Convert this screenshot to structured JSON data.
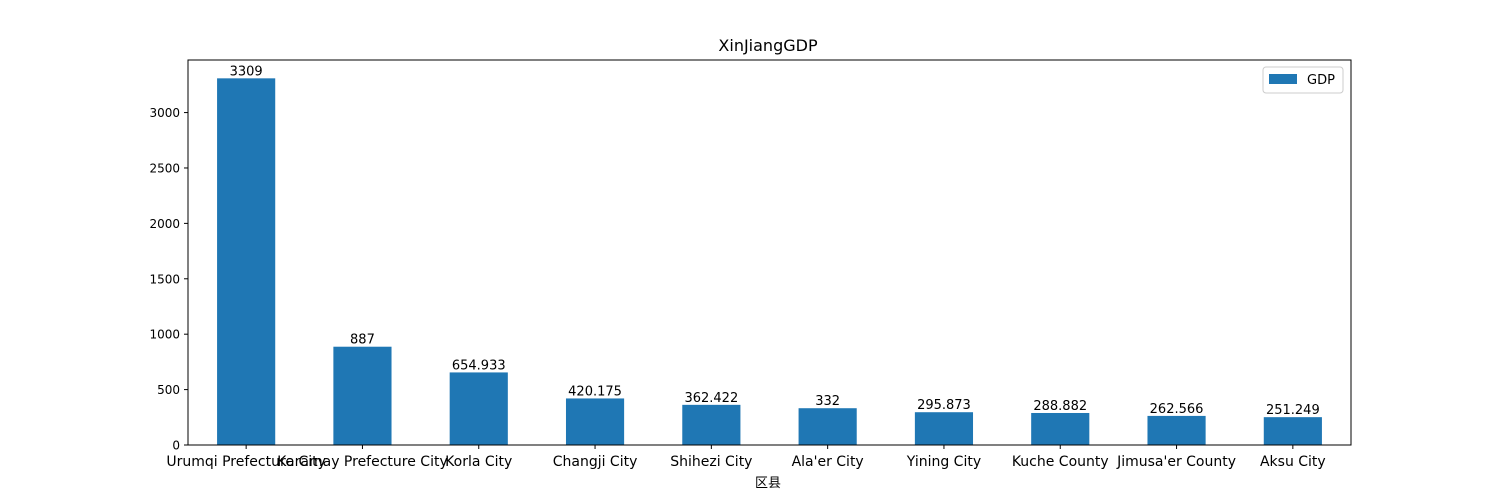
{
  "chart_data": {
    "type": "bar",
    "title": "XinJiangGDP",
    "xlabel": "区县",
    "ylabel": "",
    "categories": [
      "Urumqi Prefecture City",
      "Karamay Prefecture City",
      "Korla City",
      "Changji City",
      "Shihezi City",
      "Ala'er City",
      "Yining City",
      "Kuche County",
      "Jimusa'er County",
      "Aksu City"
    ],
    "series": [
      {
        "name": "GDP",
        "color": "#1f77b4",
        "values": [
          3309,
          887,
          654.933,
          420.175,
          362.422,
          332,
          295.873,
          288.882,
          262.566,
          251.249
        ]
      }
    ],
    "data_labels": [
      "3309",
      "887",
      "654.933",
      "420.175",
      "362.422",
      "332",
      "295.873",
      "288.882",
      "262.566",
      "251.249"
    ],
    "yticks": [
      0,
      500,
      1000,
      1500,
      2000,
      2500,
      3000
    ],
    "ylim": [
      0,
      3474.45
    ],
    "grid": false,
    "legend_position": "top-right"
  }
}
